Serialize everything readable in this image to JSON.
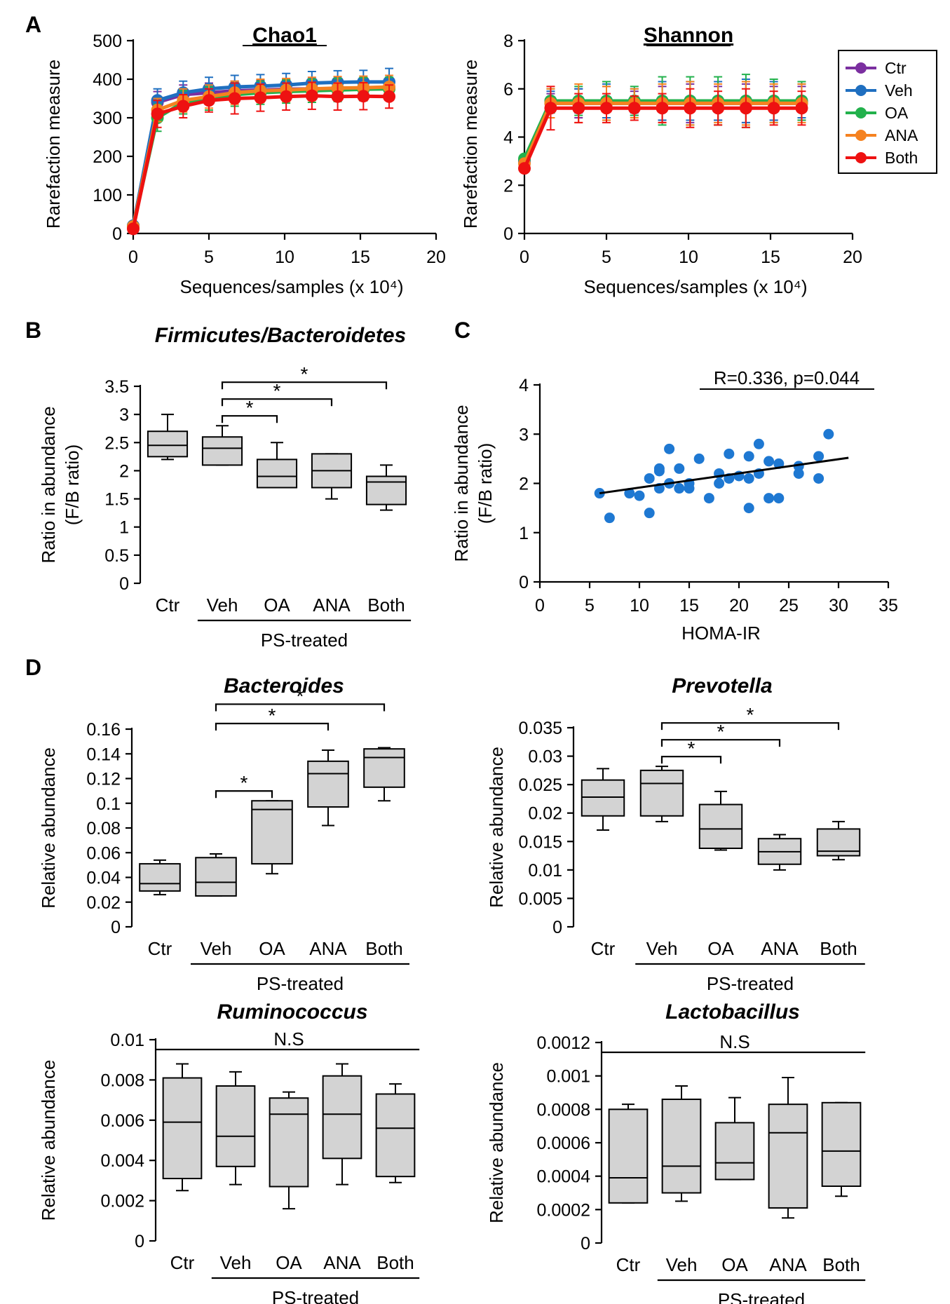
{
  "colors": {
    "Ctr": "#7b2fa0",
    "Veh": "#1f6fc0",
    "OA": "#22b14c",
    "ANA": "#f58220",
    "Both": "#ee1111",
    "box_fill": "#d3d3d3",
    "scatter": "#1e78d2"
  },
  "panel_labels": {
    "A": "A",
    "B": "B",
    "C": "C",
    "D": "D"
  },
  "legend": [
    "Ctr",
    "Veh",
    "OA",
    "ANA",
    "Both"
  ],
  "chart_data": [
    {
      "id": "chao1",
      "type": "line",
      "title": "Chao1",
      "xlabel": "Sequences/samples (x 10⁴)",
      "ylabel": "Rarefaction measure",
      "xlim": [
        0,
        20
      ],
      "xticks": [
        0,
        5,
        10,
        15,
        20
      ],
      "ylim": [
        0,
        500
      ],
      "yticks": [
        0,
        100,
        200,
        300,
        400,
        500
      ],
      "x": [
        0,
        1.6,
        3.3,
        5,
        6.7,
        8.4,
        10.1,
        11.8,
        13.5,
        15.2,
        16.9
      ],
      "series": [
        {
          "name": "Ctr",
          "values": [
            20,
            340,
            360,
            365,
            370,
            372,
            374,
            375,
            376,
            376,
            377
          ],
          "err": [
            0,
            28,
            25,
            25,
            25,
            25,
            25,
            25,
            25,
            25,
            25
          ]
        },
        {
          "name": "Veh",
          "values": [
            20,
            345,
            365,
            375,
            380,
            382,
            385,
            390,
            392,
            393,
            393
          ],
          "err": [
            0,
            30,
            30,
            30,
            30,
            30,
            30,
            30,
            30,
            30,
            35
          ]
        },
        {
          "name": "OA",
          "values": [
            18,
            300,
            340,
            350,
            360,
            365,
            368,
            370,
            372,
            374,
            375
          ],
          "err": [
            0,
            35,
            30,
            30,
            30,
            30,
            30,
            30,
            30,
            30,
            30
          ]
        },
        {
          "name": "ANA",
          "values": [
            18,
            320,
            345,
            355,
            365,
            370,
            372,
            375,
            377,
            378,
            380
          ],
          "err": [
            0,
            30,
            30,
            30,
            30,
            30,
            30,
            30,
            30,
            30,
            30
          ]
        },
        {
          "name": "Both",
          "values": [
            12,
            310,
            330,
            345,
            350,
            352,
            355,
            357,
            355,
            356,
            355
          ],
          "err": [
            0,
            35,
            30,
            30,
            40,
            35,
            35,
            35,
            35,
            35,
            30
          ]
        }
      ]
    },
    {
      "id": "shannon",
      "type": "line",
      "title": "Shannon",
      "xlabel": "Sequences/samples (x 10⁴)",
      "ylabel": "Rarefaction measure",
      "xlim": [
        0,
        20
      ],
      "xticks": [
        0,
        5,
        10,
        15,
        20
      ],
      "ylim": [
        0,
        8
      ],
      "yticks": [
        0,
        2,
        4,
        6,
        8
      ],
      "x": [
        0,
        1.6,
        3.3,
        5,
        6.7,
        8.4,
        10.1,
        11.8,
        13.5,
        15.2,
        16.9
      ],
      "series": [
        {
          "name": "Ctr",
          "values": [
            3.0,
            5.4,
            5.4,
            5.4,
            5.4,
            5.4,
            5.4,
            5.4,
            5.4,
            5.4,
            5.4
          ],
          "err": [
            0,
            0.4,
            0.6,
            0.7,
            0.5,
            0.7,
            0.8,
            0.7,
            0.8,
            0.7,
            0.7
          ]
        },
        {
          "name": "Veh",
          "values": [
            3.0,
            5.5,
            5.5,
            5.5,
            5.5,
            5.5,
            5.5,
            5.5,
            5.5,
            5.5,
            5.5
          ],
          "err": [
            0,
            0.4,
            0.5,
            0.7,
            0.5,
            0.8,
            0.8,
            0.8,
            0.9,
            0.8,
            0.7
          ]
        },
        {
          "name": "OA",
          "values": [
            3.1,
            5.5,
            5.5,
            5.5,
            5.5,
            5.5,
            5.5,
            5.5,
            5.5,
            5.5,
            5.5
          ],
          "err": [
            0,
            0.5,
            0.6,
            0.8,
            0.6,
            1.0,
            1.0,
            1.0,
            1.1,
            0.9,
            0.8
          ]
        },
        {
          "name": "ANA",
          "values": [
            2.9,
            5.4,
            5.4,
            5.4,
            5.4,
            5.4,
            5.4,
            5.4,
            5.4,
            5.4,
            5.4
          ],
          "err": [
            0,
            0.6,
            0.8,
            0.7,
            0.6,
            0.8,
            0.9,
            0.8,
            0.9,
            0.8,
            0.8
          ]
        },
        {
          "name": "Both",
          "values": [
            2.7,
            5.2,
            5.2,
            5.2,
            5.2,
            5.2,
            5.2,
            5.2,
            5.2,
            5.2,
            5.2
          ],
          "err": [
            0,
            0.9,
            0.6,
            0.6,
            0.5,
            0.6,
            0.8,
            0.7,
            0.8,
            0.7,
            0.7
          ]
        }
      ]
    },
    {
      "id": "fb",
      "type": "box",
      "title": "Firmicutes/Bacteroidetes",
      "ylabel": "Ratio in abundance",
      "ylabel2": "(F/B ratio)",
      "ylim": [
        0,
        3.5
      ],
      "yticks": [
        0,
        0.5,
        1,
        1.5,
        2,
        2.5,
        3,
        3.5
      ],
      "ytick_labels": [
        "0",
        "0.5",
        "1",
        "1.5",
        "2",
        "2.5",
        "3",
        "3.5"
      ],
      "categories": [
        "Ctr",
        "Veh",
        "OA",
        "ANA",
        "Both"
      ],
      "group_label": "PS-treated",
      "boxes": [
        {
          "min": 2.2,
          "q1": 2.25,
          "median": 2.45,
          "q3": 2.7,
          "max": 3.0
        },
        {
          "min": 2.1,
          "q1": 2.1,
          "median": 2.4,
          "q3": 2.6,
          "max": 2.8
        },
        {
          "min": 1.7,
          "q1": 1.7,
          "median": 1.9,
          "q3": 2.2,
          "max": 2.5
        },
        {
          "min": 1.5,
          "q1": 1.7,
          "median": 2.0,
          "q3": 2.3,
          "max": 2.3
        },
        {
          "min": 1.3,
          "q1": 1.4,
          "median": 1.8,
          "q3": 1.9,
          "max": 2.1
        }
      ],
      "sig": [
        {
          "from": 1,
          "to": 2,
          "label": "*"
        },
        {
          "from": 1,
          "to": 3,
          "label": "*"
        },
        {
          "from": 1,
          "to": 4,
          "label": "*"
        }
      ]
    },
    {
      "id": "homa",
      "type": "scatter",
      "ylabel": "Ratio in abundance",
      "ylabel2": "(F/B ratio)",
      "xlabel": "HOMA-IR",
      "xlim": [
        0,
        35
      ],
      "xticks": [
        0,
        5,
        10,
        15,
        20,
        25,
        30,
        35
      ],
      "ylim": [
        0,
        4
      ],
      "yticks": [
        0,
        1,
        2,
        3,
        4
      ],
      "annotation": "R=0.336, p=0.044",
      "fit": {
        "x": [
          6,
          31
        ],
        "y": [
          1.8,
          2.52
        ]
      },
      "points": [
        [
          6,
          1.8
        ],
        [
          7,
          1.3
        ],
        [
          9,
          1.8
        ],
        [
          10,
          1.75
        ],
        [
          11,
          1.4
        ],
        [
          11,
          2.1
        ],
        [
          12,
          1.9
        ],
        [
          12,
          2.25
        ],
        [
          12,
          2.3
        ],
        [
          13,
          2.7
        ],
        [
          13,
          2.0
        ],
        [
          14,
          1.9
        ],
        [
          14,
          2.3
        ],
        [
          15,
          2.0
        ],
        [
          15,
          1.9
        ],
        [
          16,
          2.5
        ],
        [
          17,
          1.7
        ],
        [
          18,
          2.2
        ],
        [
          18,
          2.0
        ],
        [
          19,
          2.1
        ],
        [
          19,
          2.6
        ],
        [
          20,
          2.15
        ],
        [
          21,
          1.5
        ],
        [
          21,
          2.55
        ],
        [
          21,
          2.1
        ],
        [
          22,
          2.2
        ],
        [
          22,
          2.8
        ],
        [
          23,
          1.7
        ],
        [
          23,
          2.45
        ],
        [
          24,
          1.7
        ],
        [
          24,
          2.4
        ],
        [
          26,
          2.2
        ],
        [
          26,
          2.35
        ],
        [
          28,
          2.1
        ],
        [
          28,
          2.55
        ],
        [
          29,
          3.0
        ]
      ]
    },
    {
      "id": "bacteroides",
      "type": "box",
      "title": "Bacteroides",
      "ylabel": "Relative abundance",
      "ylim": [
        0,
        0.16
      ],
      "yticks": [
        0,
        0.02,
        0.04,
        0.06,
        0.08,
        0.1,
        0.12,
        0.14,
        0.16
      ],
      "ytick_labels": [
        "0",
        "0.02",
        "0.04",
        "0.06",
        "0.08",
        "0.1",
        "0.12",
        "0.14",
        "0.16"
      ],
      "categories": [
        "Ctr",
        "Veh",
        "OA",
        "ANA",
        "Both"
      ],
      "group_label": "PS-treated",
      "boxes": [
        {
          "min": 0.026,
          "q1": 0.029,
          "median": 0.035,
          "q3": 0.051,
          "max": 0.054
        },
        {
          "min": 0.025,
          "q1": 0.025,
          "median": 0.036,
          "q3": 0.056,
          "max": 0.059
        },
        {
          "min": 0.043,
          "q1": 0.051,
          "median": 0.095,
          "q3": 0.102,
          "max": 0.102
        },
        {
          "min": 0.082,
          "q1": 0.097,
          "median": 0.124,
          "q3": 0.134,
          "max": 0.143
        },
        {
          "min": 0.102,
          "q1": 0.113,
          "median": 0.137,
          "q3": 0.144,
          "max": 0.145
        }
      ],
      "sig": [
        {
          "from": 1,
          "to": 2,
          "label": "*"
        },
        {
          "from": 1,
          "to": 3,
          "label": "*"
        },
        {
          "from": 1,
          "to": 4,
          "label": "*"
        }
      ]
    },
    {
      "id": "prevotella",
      "type": "box",
      "title": "Prevotella",
      "ylabel": "Relative abundance",
      "ylim": [
        0,
        0.035
      ],
      "yticks": [
        0,
        0.005,
        0.01,
        0.015,
        0.02,
        0.025,
        0.03,
        0.035
      ],
      "ytick_labels": [
        "0",
        "0.005",
        "0.01",
        "0.015",
        "0.02",
        "0.025",
        "0.03",
        "0.035"
      ],
      "categories": [
        "Ctr",
        "Veh",
        "OA",
        "ANA",
        "Both"
      ],
      "group_label": "PS-treated",
      "boxes": [
        {
          "min": 0.017,
          "q1": 0.0195,
          "median": 0.0228,
          "q3": 0.0258,
          "max": 0.0278
        },
        {
          "min": 0.0185,
          "q1": 0.0195,
          "median": 0.0252,
          "q3": 0.0275,
          "max": 0.0282
        },
        {
          "min": 0.0135,
          "q1": 0.0138,
          "median": 0.0172,
          "q3": 0.0215,
          "max": 0.0238
        },
        {
          "min": 0.01,
          "q1": 0.011,
          "median": 0.0132,
          "q3": 0.0155,
          "max": 0.0162
        },
        {
          "min": 0.0118,
          "q1": 0.0125,
          "median": 0.0133,
          "q3": 0.0172,
          "max": 0.0185
        }
      ],
      "sig": [
        {
          "from": 1,
          "to": 2,
          "label": "*"
        },
        {
          "from": 1,
          "to": 3,
          "label": "*"
        },
        {
          "from": 1,
          "to": 4,
          "label": "*"
        }
      ]
    },
    {
      "id": "ruminococcus",
      "type": "box",
      "title": "Ruminococcus",
      "ylabel": "Relative abundance",
      "ylim": [
        0,
        0.01
      ],
      "yticks": [
        0,
        0.002,
        0.004,
        0.006,
        0.008,
        0.01
      ],
      "ytick_labels": [
        "0",
        "0.002",
        "0.004",
        "0.006",
        "0.008",
        "0.01"
      ],
      "categories": [
        "Ctr",
        "Veh",
        "OA",
        "ANA",
        "Both"
      ],
      "group_label": "PS-treated",
      "ns_label": "N.S",
      "boxes": [
        {
          "min": 0.0025,
          "q1": 0.0031,
          "median": 0.0059,
          "q3": 0.0081,
          "max": 0.0088
        },
        {
          "min": 0.0028,
          "q1": 0.0037,
          "median": 0.0052,
          "q3": 0.0077,
          "max": 0.0084
        },
        {
          "min": 0.0016,
          "q1": 0.0027,
          "median": 0.0063,
          "q3": 0.0071,
          "max": 0.0074
        },
        {
          "min": 0.0028,
          "q1": 0.0041,
          "median": 0.0063,
          "q3": 0.0082,
          "max": 0.0088
        },
        {
          "min": 0.0029,
          "q1": 0.0032,
          "median": 0.0056,
          "q3": 0.0073,
          "max": 0.0078
        }
      ]
    },
    {
      "id": "lactobacillus",
      "type": "box",
      "title": "Lactobacillus",
      "ylabel": "Relative abundance",
      "ylim": [
        0,
        0.0012
      ],
      "yticks": [
        0,
        0.0002,
        0.0004,
        0.0006,
        0.0008,
        0.001,
        0.0012
      ],
      "ytick_labels": [
        "0",
        "0.0002",
        "0.0004",
        "0.0006",
        "0.0008",
        "0.001",
        "0.0012"
      ],
      "categories": [
        "Ctr",
        "Veh",
        "OA",
        "ANA",
        "Both"
      ],
      "group_label": "PS-treated",
      "ns_label": "N.S",
      "boxes": [
        {
          "min": 0.00024,
          "q1": 0.00024,
          "median": 0.00039,
          "q3": 0.0008,
          "max": 0.00083
        },
        {
          "min": 0.00025,
          "q1": 0.0003,
          "median": 0.00046,
          "q3": 0.00086,
          "max": 0.00094
        },
        {
          "min": 0.00038,
          "q1": 0.00038,
          "median": 0.00048,
          "q3": 0.00072,
          "max": 0.00087
        },
        {
          "min": 0.00015,
          "q1": 0.00021,
          "median": 0.00066,
          "q3": 0.00083,
          "max": 0.00099
        },
        {
          "min": 0.00028,
          "q1": 0.00034,
          "median": 0.00055,
          "q3": 0.00084,
          "max": 0.00084
        }
      ]
    }
  ]
}
